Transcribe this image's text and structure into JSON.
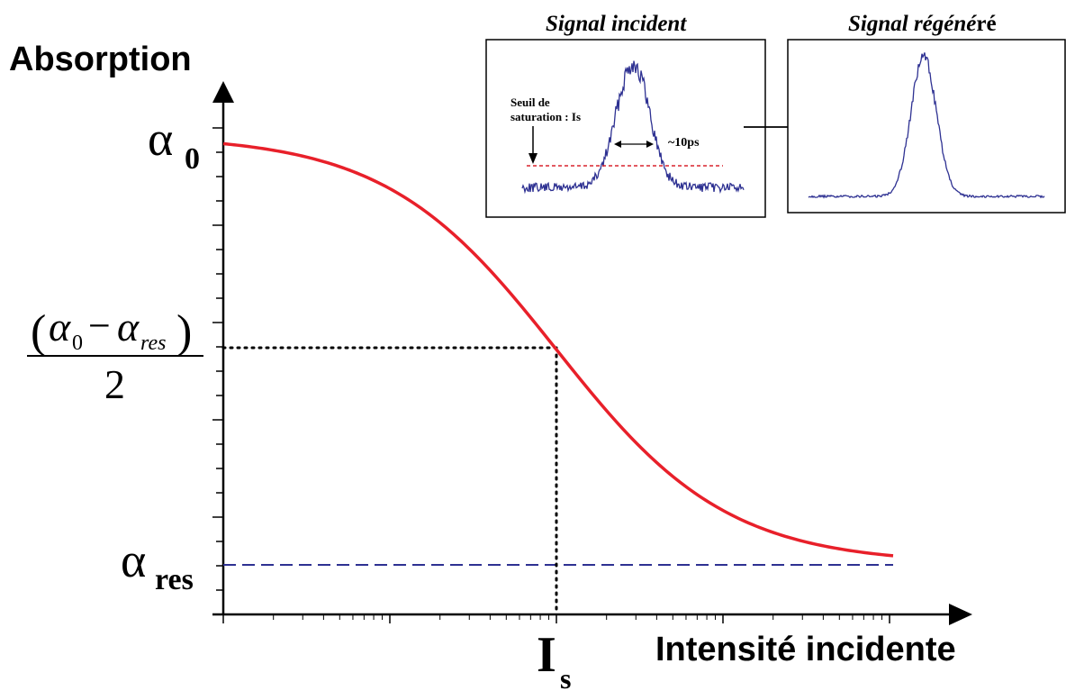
{
  "colors": {
    "curve": "#e8202a",
    "baseline": "#2e3192",
    "signal": "#2e3192",
    "threshold": "#d9232d",
    "axis": "#000000"
  },
  "axes": {
    "y_label": "Absorption",
    "x_label": "Intensité incidente",
    "x_scale": "log"
  },
  "labels": {
    "alpha0_symbol": "α",
    "alpha0_sub": "0",
    "alphares_symbol": "α",
    "alphares_sub": "res",
    "half_alpha": "α",
    "half_sub0": "0",
    "half_minus": "−",
    "half_subres": "res",
    "half_open": "(",
    "half_close": ")",
    "half_den": "2",
    "is_main": "I",
    "is_sub": "s"
  },
  "inset_incident": {
    "title": "Signal incident",
    "threshold_label_line1": "Seuil de",
    "threshold_label_line2": "saturation : Is",
    "pulse_width": "~10ps"
  },
  "inset_regenerated": {
    "title_italic": "Signal régéné",
    "title_tail": "ré"
  }
}
